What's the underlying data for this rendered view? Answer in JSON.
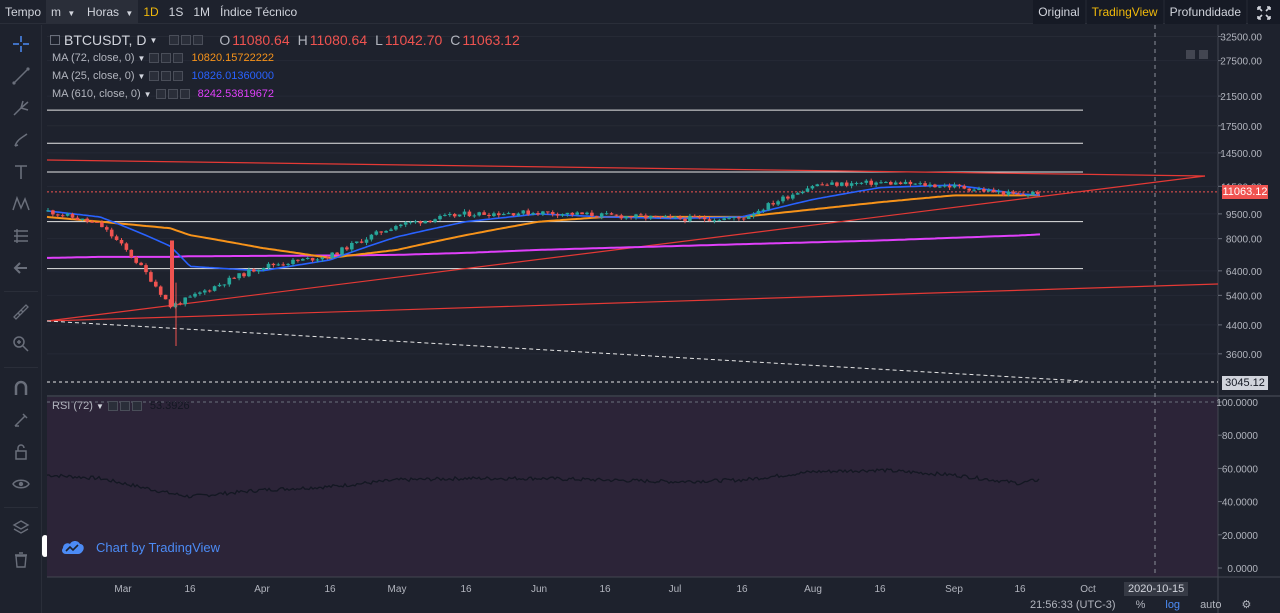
{
  "topbar": {
    "tempo_label": "Tempo",
    "interval_select": "m",
    "horas_label": "Horas",
    "intervals": [
      "1D",
      "1S",
      "1M"
    ],
    "active_interval": "1D",
    "indicators_label": "Índice Técnico",
    "views": [
      "Original",
      "TradingView",
      "Profundidade"
    ],
    "active_view": "TradingView"
  },
  "legend": {
    "symbol": "BTCUSDT, D",
    "open_label": "O",
    "open": "11080.64",
    "high_label": "H",
    "high": "11080.64",
    "low_label": "L",
    "low": "11042.70",
    "close_label": "C",
    "close": "11063.12",
    "ma": [
      {
        "label": "MA (72, close, 0)",
        "value": "10820.15722222",
        "color": "#f7931a"
      },
      {
        "label": "MA (25, close, 0)",
        "value": "10826.01360000",
        "color": "#2962ff"
      },
      {
        "label": "MA (610, close, 0)",
        "value": "8242.53819672",
        "color": "#e040fb"
      }
    ],
    "rsi_label": "RSI (72)",
    "rsi_value": "53.3926"
  },
  "price_axis": {
    "ticks": [
      "32500.00",
      "27500.00",
      "21500.00",
      "17500.00",
      "14500.00",
      "11500.00",
      "9500.00",
      "8000.00",
      "6400.00",
      "5400.00",
      "4400.00",
      "3600.00"
    ],
    "last_price": "11063.12",
    "marker_price": "3045.12",
    "log_scale": true
  },
  "rsi_axis": {
    "ticks": [
      "100.0000",
      "80.0000",
      "60.0000",
      "40.0000",
      "20.0000",
      "0.0000"
    ]
  },
  "time_axis": {
    "ticks": [
      "Mar",
      "16",
      "Apr",
      "16",
      "May",
      "16",
      "Jun",
      "16",
      "Jul",
      "16",
      "Aug",
      "16",
      "Sep",
      "16",
      "Oct"
    ],
    "cursor_date": "2020-10-15"
  },
  "watermark": "Chart by TradingView",
  "bottom": {
    "time": "21:56:33 (UTC-3)",
    "percent": "%",
    "log": "log",
    "auto": "auto"
  },
  "colors": {
    "up": "#26a69a",
    "down": "#ef5350",
    "ma72": "#f7931a",
    "ma25": "#2962ff",
    "ma610": "#e040fb",
    "trend": "#e53935",
    "accent": "#f0b90b"
  },
  "chart_data": {
    "type": "candlestick",
    "series": [
      {
        "name": "BTCUSDT",
        "x": [
          "Feb-20",
          "Mar-01",
          "Mar-12",
          "Mar-16",
          "Apr-01",
          "Apr-16",
          "May-01",
          "May-16",
          "Jun-01",
          "Jun-16",
          "Jul-01",
          "Jul-16",
          "Aug-01",
          "Aug-16",
          "Sep-01",
          "Sep-16",
          "Sep-20"
        ],
        "values": [
          9700,
          8800,
          5000,
          5300,
          6600,
          7100,
          8800,
          9500,
          9600,
          9400,
          9200,
          9200,
          11600,
          11800,
          11500,
          10800,
          11063
        ]
      },
      {
        "name": "MA (72, close, 0)",
        "values": [
          9300,
          9000,
          8600,
          8200,
          7500,
          7000,
          7400,
          8200,
          9000,
          9300,
          9300,
          9300,
          9800,
          10300,
          10800,
          10800,
          10820
        ]
      },
      {
        "name": "MA (25, close, 0)",
        "values": [
          9700,
          9300,
          7600,
          6600,
          6400,
          6900,
          8100,
          9000,
          9500,
          9300,
          9200,
          9300,
          10500,
          11400,
          11600,
          10900,
          10826
        ]
      },
      {
        "name": "MA (610, close, 0)",
        "values": [
          7000,
          7050,
          7050,
          7080,
          7100,
          7120,
          7150,
          7250,
          7400,
          7500,
          7600,
          7700,
          7800,
          7900,
          8050,
          8180,
          8242
        ]
      },
      {
        "name": "RSI (72)",
        "values": [
          56,
          54,
          45,
          43,
          47,
          49,
          53,
          54,
          54,
          53,
          52,
          53,
          58,
          59,
          56,
          51,
          53.39
        ]
      }
    ]
  }
}
